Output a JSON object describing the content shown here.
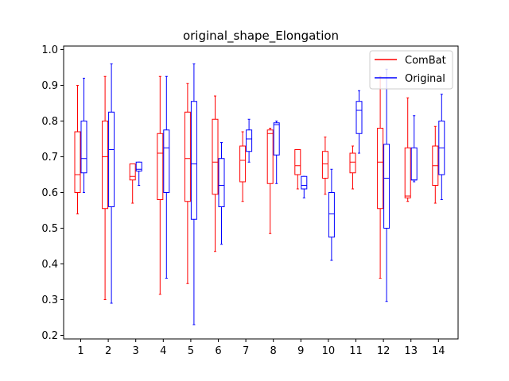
{
  "chart_data": {
    "type": "boxplot",
    "title": "original_shape_Elongation",
    "xlabel": "",
    "ylabel": "",
    "categories": [
      "1",
      "2",
      "3",
      "4",
      "5",
      "6",
      "7",
      "8",
      "9",
      "10",
      "11",
      "12",
      "13",
      "14"
    ],
    "ylim": [
      0.19,
      1.01
    ],
    "yticks": [
      0.2,
      0.3,
      0.4,
      0.5,
      0.6,
      0.7,
      0.8,
      0.9,
      1.0
    ],
    "ytick_labels": [
      "0.2",
      "0.3",
      "0.4",
      "0.5",
      "0.6",
      "0.7",
      "0.8",
      "0.9",
      "1.0"
    ],
    "grid": false,
    "legend": {
      "position": "top-right",
      "entries": [
        {
          "name": "ComBat",
          "color": "#ff0000"
        },
        {
          "name": "Original",
          "color": "#0000ff"
        }
      ]
    },
    "series": [
      {
        "name": "ComBat",
        "color": "#ff0000",
        "boxes": [
          {
            "whislo": 0.54,
            "q1": 0.6,
            "med": 0.65,
            "q3": 0.77,
            "whishi": 0.9
          },
          {
            "whislo": 0.3,
            "q1": 0.555,
            "med": 0.7,
            "q3": 0.8,
            "whishi": 0.925
          },
          {
            "whislo": 0.57,
            "q1": 0.635,
            "med": 0.645,
            "q3": 0.68,
            "whishi": 0.68
          },
          {
            "whislo": 0.315,
            "q1": 0.58,
            "med": 0.71,
            "q3": 0.765,
            "whishi": 0.925
          },
          {
            "whislo": 0.345,
            "q1": 0.575,
            "med": 0.695,
            "q3": 0.825,
            "whishi": 0.905
          },
          {
            "whislo": 0.435,
            "q1": 0.595,
            "med": 0.685,
            "q3": 0.805,
            "whishi": 0.87
          },
          {
            "whislo": 0.575,
            "q1": 0.63,
            "med": 0.69,
            "q3": 0.73,
            "whishi": 0.77
          },
          {
            "whislo": 0.485,
            "q1": 0.625,
            "med": 0.765,
            "q3": 0.775,
            "whishi": 0.78
          },
          {
            "whislo": 0.61,
            "q1": 0.65,
            "med": 0.675,
            "q3": 0.72,
            "whishi": 0.72
          },
          {
            "whislo": 0.595,
            "q1": 0.64,
            "med": 0.68,
            "q3": 0.715,
            "whishi": 0.755
          },
          {
            "whislo": 0.61,
            "q1": 0.655,
            "med": 0.685,
            "q3": 0.71,
            "whishi": 0.73
          },
          {
            "whislo": 0.36,
            "q1": 0.555,
            "med": 0.685,
            "q3": 0.78,
            "whishi": 0.925
          },
          {
            "whislo": 0.575,
            "q1": 0.585,
            "med": 0.59,
            "q3": 0.725,
            "whishi": 0.865
          },
          {
            "whislo": 0.57,
            "q1": 0.62,
            "med": 0.675,
            "q3": 0.73,
            "whishi": 0.785
          }
        ]
      },
      {
        "name": "Original",
        "color": "#0000ff",
        "boxes": [
          {
            "whislo": 0.6,
            "q1": 0.655,
            "med": 0.695,
            "q3": 0.8,
            "whishi": 0.92
          },
          {
            "whislo": 0.29,
            "q1": 0.56,
            "med": 0.72,
            "q3": 0.825,
            "whishi": 0.96
          },
          {
            "whislo": 0.62,
            "q1": 0.66,
            "med": 0.665,
            "q3": 0.685,
            "whishi": 0.685
          },
          {
            "whislo": 0.36,
            "q1": 0.6,
            "med": 0.725,
            "q3": 0.775,
            "whishi": 0.925
          },
          {
            "whislo": 0.23,
            "q1": 0.525,
            "med": 0.68,
            "q3": 0.855,
            "whishi": 0.96
          },
          {
            "whislo": 0.455,
            "q1": 0.56,
            "med": 0.62,
            "q3": 0.695,
            "whishi": 0.74
          },
          {
            "whislo": 0.685,
            "q1": 0.715,
            "med": 0.75,
            "q3": 0.775,
            "whishi": 0.805
          },
          {
            "whislo": 0.625,
            "q1": 0.705,
            "med": 0.79,
            "q3": 0.795,
            "whishi": 0.8
          },
          {
            "whislo": 0.585,
            "q1": 0.61,
            "med": 0.62,
            "q3": 0.645,
            "whishi": 0.645
          },
          {
            "whislo": 0.41,
            "q1": 0.475,
            "med": 0.54,
            "q3": 0.6,
            "whishi": 0.665
          },
          {
            "whislo": 0.71,
            "q1": 0.765,
            "med": 0.83,
            "q3": 0.855,
            "whishi": 0.885
          },
          {
            "whislo": 0.295,
            "q1": 0.5,
            "med": 0.64,
            "q3": 0.735,
            "whishi": 0.945
          },
          {
            "whislo": 0.63,
            "q1": 0.635,
            "med": 0.635,
            "q3": 0.725,
            "whishi": 0.815
          },
          {
            "whislo": 0.58,
            "q1": 0.65,
            "med": 0.725,
            "q3": 0.8,
            "whishi": 0.875
          }
        ]
      }
    ]
  }
}
